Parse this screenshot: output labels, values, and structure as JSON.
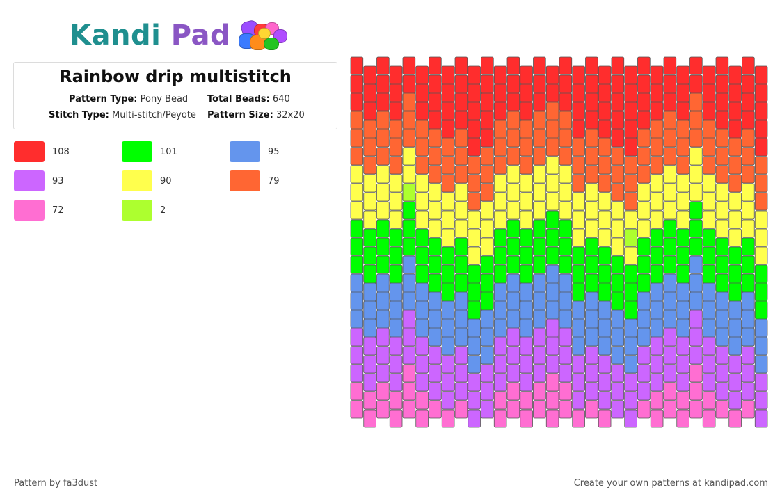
{
  "brand": {
    "part1": "Kandi",
    "part2": "Pad"
  },
  "pattern": {
    "title": "Rainbow drip multistitch",
    "type_label": "Pattern Type:",
    "type_value": "Pony Bead",
    "total_label": "Total Beads:",
    "total_value": "640",
    "stitch_label": "Stitch Type:",
    "stitch_value": "Multi-stitch/Peyote",
    "size_label": "Pattern Size:",
    "size_value": "32x20"
  },
  "legend": [
    {
      "color": "#ff2d2d",
      "count": "108"
    },
    {
      "color": "#00ff00",
      "count": "101"
    },
    {
      "color": "#6495ed",
      "count": "95"
    },
    {
      "color": "#cc66ff",
      "count": "93"
    },
    {
      "color": "#ffff4d",
      "count": "90"
    },
    {
      "color": "#ff6633",
      "count": "79"
    },
    {
      "color": "#ff6ed2",
      "count": "72"
    },
    {
      "color": "#adff2f",
      "count": "2"
    }
  ],
  "footer": {
    "credit": "Pattern by fa3dust",
    "cta": "Create your own patterns at kandipad.com"
  }
}
